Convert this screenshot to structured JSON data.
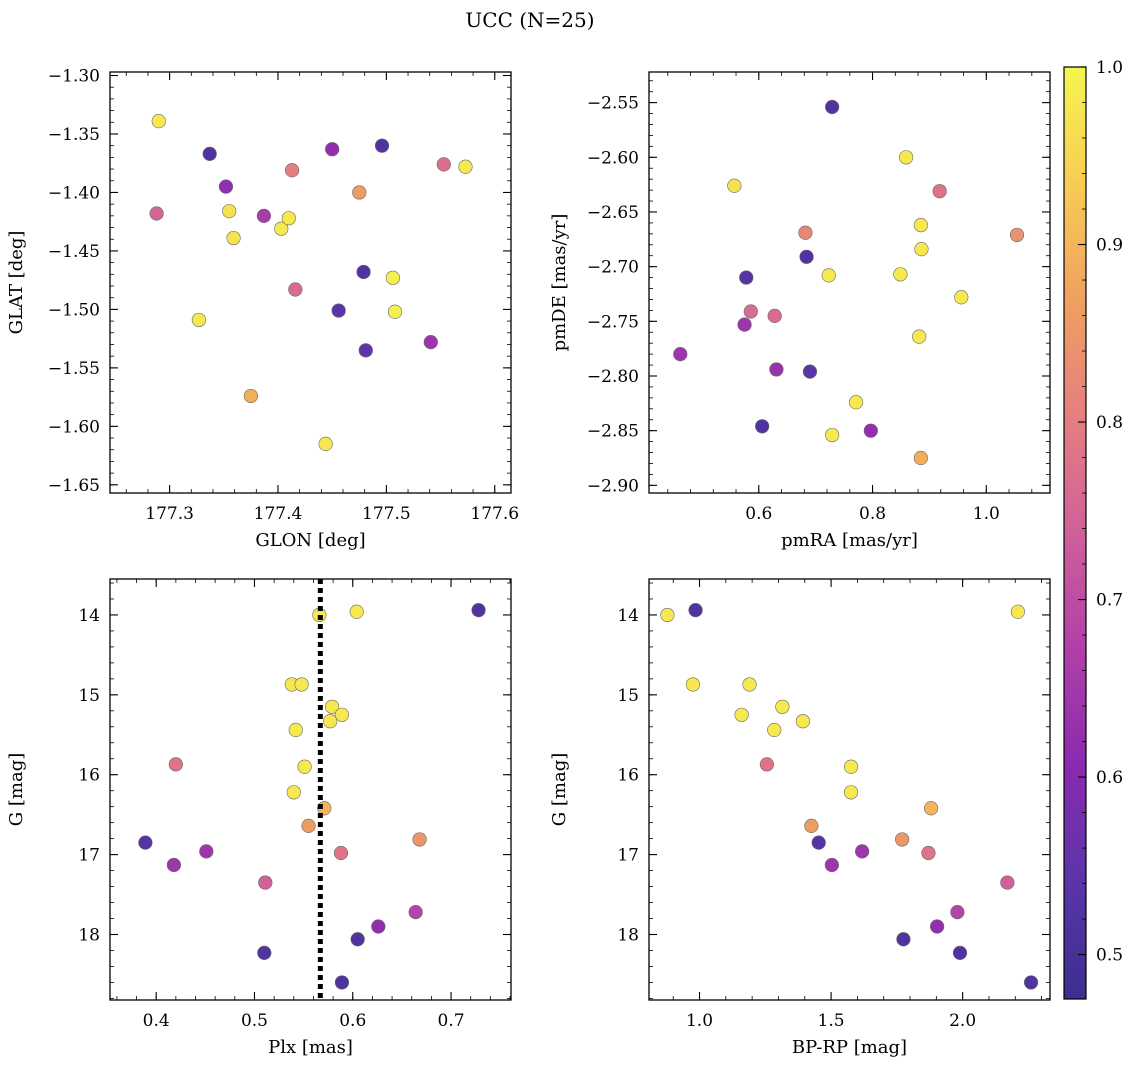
{
  "title": "UCC (N=25)",
  "colormap": {
    "name": "plasma",
    "vmin": 0.475,
    "vmax": 1.0,
    "ticks": [
      "0.5",
      "0.6",
      "0.7",
      "0.8",
      "0.9",
      "1.0"
    ],
    "tick_values": [
      0.5,
      0.6,
      0.7,
      0.8,
      0.9,
      1.0
    ],
    "stops": [
      "#3b2f8f",
      "#5a35a8",
      "#8a2ab0",
      "#b040a8",
      "#d0609a",
      "#e47f80",
      "#f0a060",
      "#f8cc54",
      "#f5f54e"
    ]
  },
  "chart_data": [
    {
      "type": "scatter",
      "xlabel": "GLON [deg]",
      "ylabel": "GLAT [deg]",
      "xlim": [
        177.245,
        177.615
      ],
      "ylim": [
        -1.657,
        -1.297
      ],
      "xticks": [
        177.3,
        177.4,
        177.5,
        177.6
      ],
      "xtick_labels": [
        "177.3",
        "177.4",
        "177.5",
        "177.6"
      ],
      "yticks": [
        -1.3,
        -1.35,
        -1.4,
        -1.45,
        -1.5,
        -1.55,
        -1.6,
        -1.65
      ],
      "ytick_labels": [
        "−1.30",
        "−1.35",
        "−1.40",
        "−1.45",
        "−1.50",
        "−1.55",
        "−1.60",
        "−1.65"
      ],
      "points": [
        {
          "x": 177.29,
          "y": -1.339,
          "c": 0.98
        },
        {
          "x": 177.337,
          "y": -1.367,
          "c": 0.52
        },
        {
          "x": 177.352,
          "y": -1.395,
          "c": 0.62
        },
        {
          "x": 177.355,
          "y": -1.416,
          "c": 0.97
        },
        {
          "x": 177.359,
          "y": -1.439,
          "c": 0.97
        },
        {
          "x": 177.387,
          "y": -1.42,
          "c": 0.66
        },
        {
          "x": 177.403,
          "y": -1.431,
          "c": 0.98
        },
        {
          "x": 177.41,
          "y": -1.422,
          "c": 0.98
        },
        {
          "x": 177.413,
          "y": -1.381,
          "c": 0.8
        },
        {
          "x": 177.416,
          "y": -1.483,
          "c": 0.76
        },
        {
          "x": 177.45,
          "y": -1.363,
          "c": 0.62
        },
        {
          "x": 177.444,
          "y": -1.615,
          "c": 0.98
        },
        {
          "x": 177.456,
          "y": -1.501,
          "c": 0.54
        },
        {
          "x": 177.475,
          "y": -1.4,
          "c": 0.86
        },
        {
          "x": 177.479,
          "y": -1.468,
          "c": 0.52
        },
        {
          "x": 177.481,
          "y": -1.535,
          "c": 0.55
        },
        {
          "x": 177.496,
          "y": -1.36,
          "c": 0.52
        },
        {
          "x": 177.506,
          "y": -1.473,
          "c": 0.99
        },
        {
          "x": 177.508,
          "y": -1.502,
          "c": 0.99
        },
        {
          "x": 177.288,
          "y": -1.418,
          "c": 0.75
        },
        {
          "x": 177.327,
          "y": -1.509,
          "c": 0.98
        },
        {
          "x": 177.375,
          "y": -1.574,
          "c": 0.89
        },
        {
          "x": 177.541,
          "y": -1.528,
          "c": 0.64
        },
        {
          "x": 177.553,
          "y": -1.376,
          "c": 0.77
        },
        {
          "x": 177.573,
          "y": -1.378,
          "c": 0.98
        }
      ]
    },
    {
      "type": "scatter",
      "xlabel": "pmRA [mas/yr]",
      "ylabel": "pmDE [mas/yr]",
      "xlim": [
        0.407,
        1.112
      ],
      "ylim": [
        -2.907,
        -2.522
      ],
      "xticks": [
        0.6,
        0.8,
        1.0
      ],
      "xtick_labels": [
        "0.6",
        "0.8",
        "1.0"
      ],
      "yticks": [
        -2.55,
        -2.6,
        -2.65,
        -2.7,
        -2.75,
        -2.8,
        -2.85,
        -2.9
      ],
      "ytick_labels": [
        "−2.55",
        "−2.60",
        "−2.65",
        "−2.70",
        "−2.75",
        "−2.80",
        "−2.85",
        "−2.90"
      ],
      "points": [
        {
          "x": 0.729,
          "y": -2.554,
          "c": 0.52
        },
        {
          "x": 0.859,
          "y": -2.6,
          "c": 0.98
        },
        {
          "x": 0.557,
          "y": -2.626,
          "c": 0.97
        },
        {
          "x": 0.918,
          "y": -2.631,
          "c": 0.78
        },
        {
          "x": 0.885,
          "y": -2.662,
          "c": 0.98
        },
        {
          "x": 0.682,
          "y": -2.669,
          "c": 0.82
        },
        {
          "x": 1.054,
          "y": -2.671,
          "c": 0.84
        },
        {
          "x": 0.886,
          "y": -2.684,
          "c": 0.98
        },
        {
          "x": 0.684,
          "y": -2.691,
          "c": 0.52
        },
        {
          "x": 0.849,
          "y": -2.707,
          "c": 0.98
        },
        {
          "x": 0.723,
          "y": -2.708,
          "c": 0.98
        },
        {
          "x": 0.578,
          "y": -2.71,
          "c": 0.53
        },
        {
          "x": 0.956,
          "y": -2.728,
          "c": 0.98
        },
        {
          "x": 0.586,
          "y": -2.741,
          "c": 0.76
        },
        {
          "x": 0.628,
          "y": -2.745,
          "c": 0.76
        },
        {
          "x": 0.575,
          "y": -2.753,
          "c": 0.64
        },
        {
          "x": 0.882,
          "y": -2.764,
          "c": 0.98
        },
        {
          "x": 0.462,
          "y": -2.78,
          "c": 0.64
        },
        {
          "x": 0.631,
          "y": -2.794,
          "c": 0.63
        },
        {
          "x": 0.69,
          "y": -2.796,
          "c": 0.54
        },
        {
          "x": 0.771,
          "y": -2.824,
          "c": 0.98
        },
        {
          "x": 0.606,
          "y": -2.846,
          "c": 0.52
        },
        {
          "x": 0.797,
          "y": -2.85,
          "c": 0.62
        },
        {
          "x": 0.729,
          "y": -2.854,
          "c": 0.98
        },
        {
          "x": 0.885,
          "y": -2.875,
          "c": 0.89
        }
      ]
    },
    {
      "type": "scatter",
      "xlabel": "Plx [mas]",
      "ylabel": "G [mag]",
      "xlim": [
        0.353,
        0.761
      ],
      "ylim": [
        18.82,
        13.55
      ],
      "xticks": [
        0.4,
        0.5,
        0.6,
        0.7
      ],
      "xtick_labels": [
        "0.4",
        "0.5",
        "0.6",
        "0.7"
      ],
      "yticks": [
        14,
        15,
        16,
        17,
        18
      ],
      "ytick_labels": [
        "14",
        "15",
        "16",
        "17",
        "18"
      ],
      "vline": 0.567,
      "points": [
        {
          "x": 0.728,
          "y": 13.94,
          "c": 0.52
        },
        {
          "x": 0.604,
          "y": 13.96,
          "c": 0.98
        },
        {
          "x": 0.566,
          "y": 14.0,
          "c": 0.98
        },
        {
          "x": 0.538,
          "y": 14.87,
          "c": 0.98
        },
        {
          "x": 0.548,
          "y": 14.87,
          "c": 0.98
        },
        {
          "x": 0.579,
          "y": 15.15,
          "c": 0.98
        },
        {
          "x": 0.589,
          "y": 15.25,
          "c": 0.98
        },
        {
          "x": 0.577,
          "y": 15.33,
          "c": 0.98
        },
        {
          "x": 0.542,
          "y": 15.44,
          "c": 0.98
        },
        {
          "x": 0.42,
          "y": 15.87,
          "c": 0.78
        },
        {
          "x": 0.551,
          "y": 15.9,
          "c": 0.98
        },
        {
          "x": 0.54,
          "y": 16.22,
          "c": 0.98
        },
        {
          "x": 0.571,
          "y": 16.42,
          "c": 0.9
        },
        {
          "x": 0.555,
          "y": 16.64,
          "c": 0.86
        },
        {
          "x": 0.668,
          "y": 16.81,
          "c": 0.85
        },
        {
          "x": 0.389,
          "y": 16.85,
          "c": 0.53
        },
        {
          "x": 0.451,
          "y": 16.96,
          "c": 0.64
        },
        {
          "x": 0.588,
          "y": 16.98,
          "c": 0.78
        },
        {
          "x": 0.418,
          "y": 17.13,
          "c": 0.64
        },
        {
          "x": 0.511,
          "y": 17.35,
          "c": 0.74
        },
        {
          "x": 0.664,
          "y": 17.72,
          "c": 0.68
        },
        {
          "x": 0.626,
          "y": 17.9,
          "c": 0.62
        },
        {
          "x": 0.605,
          "y": 18.06,
          "c": 0.52
        },
        {
          "x": 0.51,
          "y": 18.23,
          "c": 0.52
        },
        {
          "x": 0.589,
          "y": 18.6,
          "c": 0.52
        }
      ]
    },
    {
      "type": "scatter",
      "xlabel": "BP-RP [mag]",
      "ylabel": "G [mag]",
      "xlim": [
        0.808,
        2.332
      ],
      "ylim": [
        18.82,
        13.55
      ],
      "xticks": [
        1.0,
        1.5,
        2.0
      ],
      "xtick_labels": [
        "1.0",
        "1.5",
        "2.0"
      ],
      "yticks": [
        14,
        15,
        16,
        17,
        18
      ],
      "ytick_labels": [
        "14",
        "15",
        "16",
        "17",
        "18"
      ],
      "points": [
        {
          "x": 0.878,
          "y": 14.0,
          "c": 0.98
        },
        {
          "x": 0.985,
          "y": 13.94,
          "c": 0.52
        },
        {
          "x": 2.21,
          "y": 13.96,
          "c": 0.98
        },
        {
          "x": 0.975,
          "y": 14.87,
          "c": 0.98
        },
        {
          "x": 1.19,
          "y": 14.87,
          "c": 0.98
        },
        {
          "x": 1.315,
          "y": 15.15,
          "c": 0.98
        },
        {
          "x": 1.16,
          "y": 15.25,
          "c": 0.98
        },
        {
          "x": 1.393,
          "y": 15.33,
          "c": 0.98
        },
        {
          "x": 1.284,
          "y": 15.44,
          "c": 0.98
        },
        {
          "x": 1.256,
          "y": 15.87,
          "c": 0.78
        },
        {
          "x": 1.576,
          "y": 15.9,
          "c": 0.98
        },
        {
          "x": 1.576,
          "y": 16.22,
          "c": 0.98
        },
        {
          "x": 1.88,
          "y": 16.42,
          "c": 0.9
        },
        {
          "x": 1.425,
          "y": 16.64,
          "c": 0.86
        },
        {
          "x": 1.77,
          "y": 16.81,
          "c": 0.85
        },
        {
          "x": 1.453,
          "y": 16.85,
          "c": 0.53
        },
        {
          "x": 1.618,
          "y": 16.96,
          "c": 0.64
        },
        {
          "x": 1.87,
          "y": 16.98,
          "c": 0.78
        },
        {
          "x": 1.503,
          "y": 17.13,
          "c": 0.64
        },
        {
          "x": 2.17,
          "y": 17.35,
          "c": 0.74
        },
        {
          "x": 1.98,
          "y": 17.72,
          "c": 0.68
        },
        {
          "x": 1.903,
          "y": 17.9,
          "c": 0.62
        },
        {
          "x": 1.775,
          "y": 18.06,
          "c": 0.52
        },
        {
          "x": 1.99,
          "y": 18.23,
          "c": 0.52
        },
        {
          "x": 2.26,
          "y": 18.6,
          "c": 0.52
        }
      ]
    }
  ]
}
